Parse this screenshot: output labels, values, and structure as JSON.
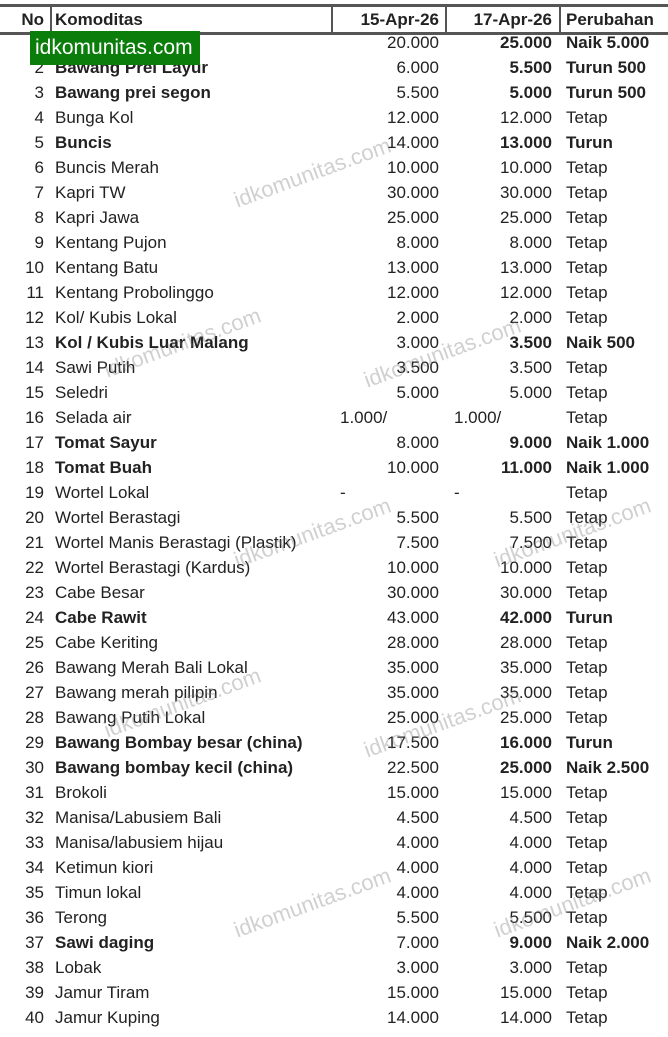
{
  "header": {
    "no": "No",
    "name": "Komoditas",
    "date_a": "15-Apr-26",
    "date_b": "17-Apr-26",
    "change": "Perubahan"
  },
  "logo_text": "idkomunitas.com",
  "watermark": "idkomunitas.com",
  "rows": [
    {
      "no": "",
      "name": "",
      "a": "20.000",
      "b": "25.000",
      "ch": "Naik 5.000",
      "bold": true
    },
    {
      "no": "2",
      "name": "Bawang Prei Layur",
      "a": "6.000",
      "b": "5.500",
      "ch": "Turun 500",
      "bold": true
    },
    {
      "no": "3",
      "name": "Bawang prei segon",
      "a": "5.500",
      "b": "5.000",
      "ch": "Turun 500",
      "bold": true
    },
    {
      "no": "4",
      "name": "Bunga Kol",
      "a": "12.000",
      "b": "12.000",
      "ch": "Tetap"
    },
    {
      "no": "5",
      "name": "Buncis",
      "a": "14.000",
      "b": "13.000",
      "ch": "Turun",
      "bold": true
    },
    {
      "no": "6",
      "name": "Buncis Merah",
      "a": "10.000",
      "b": "10.000",
      "ch": "Tetap"
    },
    {
      "no": "7",
      "name": "Kapri TW",
      "a": "30.000",
      "b": "30.000",
      "ch": "Tetap"
    },
    {
      "no": "8",
      "name": "Kapri Jawa",
      "a": "25.000",
      "b": "25.000",
      "ch": "Tetap"
    },
    {
      "no": "9",
      "name": "Kentang Pujon",
      "a": "8.000",
      "b": "8.000",
      "ch": "Tetap"
    },
    {
      "no": "10",
      "name": "Kentang Batu",
      "a": "13.000",
      "b": "13.000",
      "ch": "Tetap"
    },
    {
      "no": "11",
      "name": "Kentang Probolinggo",
      "a": "12.000",
      "b": "12.000",
      "ch": "Tetap"
    },
    {
      "no": "12",
      "name": "Kol/ Kubis Lokal",
      "a": "2.000",
      "b": "2.000",
      "ch": "Tetap"
    },
    {
      "no": "13",
      "name": "Kol / Kubis Luar Malang",
      "a": "3.000",
      "b": "3.500",
      "ch": "Naik 500",
      "bold": true
    },
    {
      "no": "14",
      "name": "Sawi Putih",
      "a": "3.500",
      "b": "3.500",
      "ch": "Tetap"
    },
    {
      "no": "15",
      "name": "Seledri",
      "a": "5.000",
      "b": "5.000",
      "ch": "Tetap"
    },
    {
      "no": "16",
      "name": "Selada air",
      "a": "1.000/",
      "b": "1.000/",
      "ch": "Tetap",
      "split": true
    },
    {
      "no": "17",
      "name": "Tomat Sayur",
      "a": "8.000",
      "b": "9.000",
      "ch": "Naik 1.000",
      "bold": true
    },
    {
      "no": "18",
      "name": "Tomat Buah",
      "a": "10.000",
      "b": "11.000",
      "ch": "Naik 1.000",
      "bold": true
    },
    {
      "no": "19",
      "name": "Wortel Lokal",
      "a": "-",
      "b": "-",
      "ch": "Tetap",
      "split": true
    },
    {
      "no": "20",
      "name": "Wortel Berastagi",
      "a": "5.500",
      "b": "5.500",
      "ch": "Tetap"
    },
    {
      "no": "21",
      "name": "Wortel Manis Berastagi (Plastik)",
      "a": "7.500",
      "b": "7.500",
      "ch": "Tetap"
    },
    {
      "no": "22",
      "name": "Wortel Berastagi (Kardus)",
      "a": "10.000",
      "b": "10.000",
      "ch": "Tetap"
    },
    {
      "no": "23",
      "name": "Cabe Besar",
      "a": "30.000",
      "b": "30.000",
      "ch": "Tetap"
    },
    {
      "no": "24",
      "name": "Cabe Rawit",
      "a": "43.000",
      "b": "42.000",
      "ch": "Turun",
      "bold": true
    },
    {
      "no": "25",
      "name": "Cabe Keriting",
      "a": "28.000",
      "b": "28.000",
      "ch": "Tetap"
    },
    {
      "no": "26",
      "name": "Bawang Merah Bali Lokal",
      "a": "35.000",
      "b": "35.000",
      "ch": "Tetap"
    },
    {
      "no": "27",
      "name": "Bawang merah pilipin",
      "a": "35.000",
      "b": "35.000",
      "ch": "Tetap"
    },
    {
      "no": "28",
      "name": "Bawang Putih Lokal",
      "a": "25.000",
      "b": "25.000",
      "ch": "Tetap"
    },
    {
      "no": "29",
      "name": "Bawang Bombay besar (china)",
      "a": "17.500",
      "b": "16.000",
      "ch": "Turun",
      "bold": true
    },
    {
      "no": "30",
      "name": "Bawang bombay kecil (china)",
      "a": "22.500",
      "b": "25.000",
      "ch": "Naik 2.500",
      "bold": true
    },
    {
      "no": "31",
      "name": "Brokoli",
      "a": "15.000",
      "b": "15.000",
      "ch": "Tetap"
    },
    {
      "no": "32",
      "name": "Manisa/Labusiem Bali",
      "a": "4.500",
      "b": "4.500",
      "ch": "Tetap"
    },
    {
      "no": "33",
      "name": "Manisa/labusiem hijau",
      "a": "4.000",
      "b": "4.000",
      "ch": "Tetap"
    },
    {
      "no": "34",
      "name": "Ketimun kiori",
      "a": "4.000",
      "b": "4.000",
      "ch": "Tetap"
    },
    {
      "no": "35",
      "name": "Timun lokal",
      "a": "4.000",
      "b": "4.000",
      "ch": "Tetap"
    },
    {
      "no": "36",
      "name": "Terong",
      "a": "5.500",
      "b": "5.500",
      "ch": "Tetap"
    },
    {
      "no": "37",
      "name": "Sawi daging",
      "a": "7.000",
      "b": "9.000",
      "ch": "Naik 2.000",
      "bold": true
    },
    {
      "no": "38",
      "name": "Lobak",
      "a": "3.000",
      "b": "3.000",
      "ch": "Tetap"
    },
    {
      "no": "39",
      "name": "Jamur Tiram",
      "a": "15.000",
      "b": "15.000",
      "ch": "Tetap"
    },
    {
      "no": "40",
      "name": "Jamur Kuping",
      "a": "14.000",
      "b": "14.000",
      "ch": "Tetap"
    }
  ]
}
